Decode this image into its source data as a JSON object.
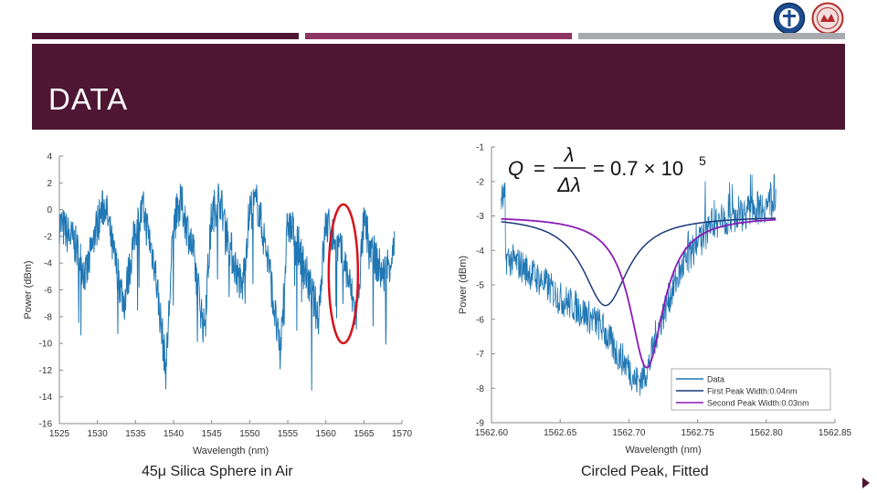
{
  "slide": {
    "title": "DATA",
    "caption_left": "45μ Silica Sphere in Air",
    "caption_right": "Circled Peak, Fitted"
  },
  "logos": {
    "left": "university-seal-icon",
    "right": "institute-seal-icon"
  },
  "colors": {
    "band": "#4e1633",
    "bar_mid": "#8c3462",
    "bar_grey": "#a7a9ad",
    "data_blue": "#1f77b4",
    "fit_navy": "#1b3a7a",
    "fit_purple": "#8b1bb7",
    "circle_red": "#d9121a"
  },
  "chart_data": [
    {
      "type": "line",
      "title": "",
      "xlabel": "Wavelength (nm)",
      "ylabel": "Power (dBm)",
      "xlim": [
        1525,
        1570
      ],
      "ylim": [
        -16,
        4
      ],
      "xticks": [
        1525,
        1530,
        1535,
        1540,
        1545,
        1550,
        1555,
        1560,
        1565,
        1570
      ],
      "yticks": [
        4,
        2,
        0,
        -2,
        -4,
        -6,
        -8,
        -10,
        -12,
        -14,
        -16
      ],
      "annotation": "red ellipse circling the resonance near 1562-1563 nm",
      "series": [
        {
          "x": [
            1525,
            1527,
            1528.5,
            1530,
            1531,
            1532,
            1533.5,
            1535,
            1536,
            1537.5,
            1539,
            1540,
            1541,
            1542.5,
            1544,
            1545,
            1546,
            1547.5,
            1549,
            1550,
            1551,
            1552.5,
            1554,
            1555,
            1556,
            1557.5,
            1559,
            1560,
            1561,
            1562.5,
            1564,
            1565,
            1566,
            1567.5,
            1569
          ],
          "y": [
            -1,
            -2.5,
            -5,
            -1,
            0.5,
            -3,
            -7,
            -1.5,
            0,
            -4,
            -12,
            -1,
            0.5,
            -3,
            -9,
            -0.5,
            1,
            -3,
            -6,
            0,
            0.5,
            -4,
            -11,
            -1,
            -2,
            -5,
            -8,
            -1,
            -2,
            -4,
            -8,
            -1,
            -3,
            -5,
            -3
          ]
        }
      ]
    },
    {
      "type": "line",
      "title": "",
      "formula": "Q = λ/Δλ = 0.7 × 10^5",
      "xlabel": "Wavelength (nm)",
      "ylabel": "Power (dBm)",
      "xlim": [
        1562.6,
        1562.85
      ],
      "ylim": [
        -9,
        -1
      ],
      "xticks": [
        "1562.60",
        "1562.65",
        "1562.70",
        "1562.75",
        "1562.80",
        "1562.85"
      ],
      "yticks": [
        -1,
        -2,
        -3,
        -4,
        -5,
        -6,
        -7,
        -8,
        -9
      ],
      "legend_position": "bottom-right",
      "series": [
        {
          "name": "Data",
          "x": [
            1562.61,
            1562.62,
            1562.63,
            1562.64,
            1562.65,
            1562.66,
            1562.67,
            1562.68,
            1562.69,
            1562.7,
            1562.705,
            1562.71,
            1562.715,
            1562.72,
            1562.73,
            1562.74,
            1562.75,
            1562.76,
            1562.77,
            1562.78,
            1562.79,
            1562.8,
            1562.81
          ],
          "y": [
            -4.2,
            -4.4,
            -4.7,
            -5.0,
            -5.4,
            -5.6,
            -5.9,
            -6.2,
            -6.9,
            -7.4,
            -7.8,
            -7.7,
            -7.3,
            -6.4,
            -5.3,
            -4.4,
            -3.8,
            -3.3,
            -3.1,
            -3.0,
            -2.8,
            -2.7,
            -2.5
          ]
        },
        {
          "name": "First Peak Width:0.04nm",
          "center": 1562.683,
          "min": -5.6,
          "baseline": -3
        },
        {
          "name": "Second Peak Width:0.03nm",
          "center": 1562.713,
          "min": -7.4,
          "baseline": -3
        }
      ]
    }
  ]
}
